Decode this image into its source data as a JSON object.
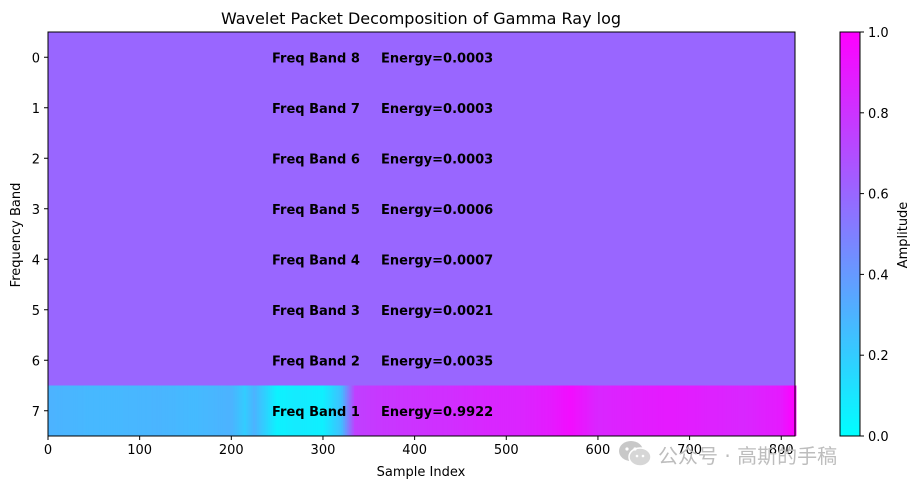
{
  "chart_data": {
    "type": "heatmap",
    "title": "Wavelet Packet Decomposition of Gamma Ray log",
    "xlabel": "Sample Index",
    "ylabel": "Frequency Band",
    "xlim": [
      0,
      815
    ],
    "ylim": [
      7.5,
      -0.5
    ],
    "x_ticks": [
      "0",
      "100",
      "200",
      "300",
      "400",
      "500",
      "600",
      "700",
      "800"
    ],
    "y_ticks": [
      "0",
      "1",
      "2",
      "3",
      "4",
      "5",
      "6",
      "7"
    ],
    "colormap": "cool",
    "color_min": "#00ffff",
    "color_max": "#ff00ff",
    "colorbar": {
      "label": "Amplitude",
      "range": [
        0.0,
        1.0
      ],
      "ticks": [
        "0.0",
        "0.2",
        "0.4",
        "0.6",
        "0.8",
        "1.0"
      ]
    },
    "background_amplitude": 0.6,
    "band7_profile": {
      "x": [
        0,
        40,
        80,
        120,
        160,
        200,
        215,
        225,
        250,
        270,
        300,
        320,
        335,
        360,
        400,
        440,
        480,
        520,
        550,
        570,
        600,
        640,
        680,
        720,
        760,
        800,
        815
      ],
      "amplitude": [
        0.3,
        0.28,
        0.28,
        0.29,
        0.27,
        0.3,
        0.2,
        0.3,
        0.05,
        0.08,
        0.06,
        0.25,
        0.75,
        0.78,
        0.8,
        0.82,
        0.85,
        0.86,
        0.9,
        0.95,
        0.85,
        0.88,
        0.9,
        0.87,
        0.85,
        0.9,
        1.0
      ]
    },
    "band_annotations": [
      {
        "band": 0,
        "label": "Freq Band 8",
        "energy": "Energy=0.0003"
      },
      {
        "band": 1,
        "label": "Freq Band 7",
        "energy": "Energy=0.0003"
      },
      {
        "band": 2,
        "label": "Freq Band 6",
        "energy": "Energy=0.0003"
      },
      {
        "band": 3,
        "label": "Freq Band 5",
        "energy": "Energy=0.0006"
      },
      {
        "band": 4,
        "label": "Freq Band 4",
        "energy": "Energy=0.0007"
      },
      {
        "band": 5,
        "label": "Freq Band 3",
        "energy": "Energy=0.0021"
      },
      {
        "band": 6,
        "label": "Freq Band 2",
        "energy": "Energy=0.0035"
      },
      {
        "band": 7,
        "label": "Freq Band 1",
        "energy": "Energy=0.9922"
      }
    ]
  },
  "watermark": {
    "icon": "wechat-icon",
    "text": "公众号 · 高斯的手稿"
  }
}
